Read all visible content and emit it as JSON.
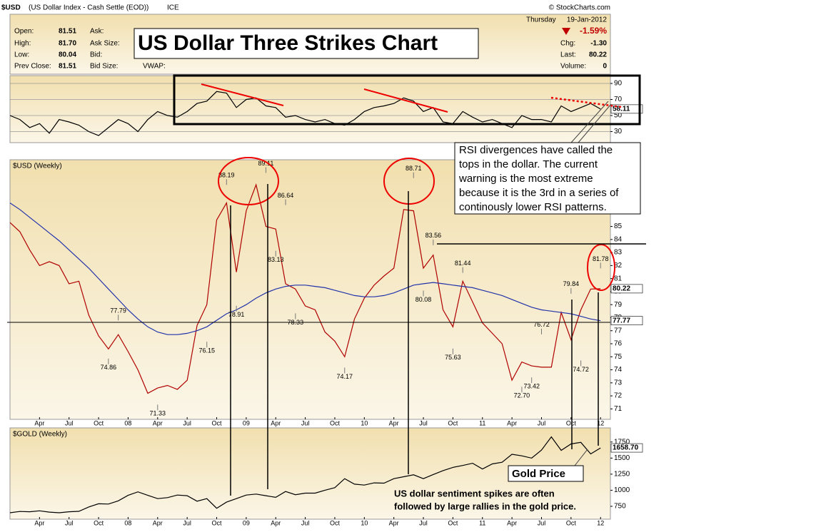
{
  "header": {
    "title": "$USD",
    "subtitle": "(US Dollar Index - Cash Settle (EOD))",
    "exchange": "ICE",
    "credit": "© StockCharts.com",
    "main_title": "US Dollar Three Strikes Chart"
  },
  "quote": {
    "left": [
      {
        "label": "Open:",
        "value": "81.51"
      },
      {
        "label": "High:",
        "value": "81.70"
      },
      {
        "label": "Low:",
        "value": "80.04"
      },
      {
        "label": "Prev Close:",
        "value": "81.51"
      }
    ],
    "middle": [
      "Ask:",
      "Ask Size:",
      "Bid:",
      "Bid Size:"
    ],
    "vwap": "VWAP:",
    "day": "Thursday",
    "date": "19-Jan-2012",
    "change_pct": "-1.59%",
    "right": [
      {
        "label": "Chg:",
        "value": "-1.30"
      },
      {
        "label": "Last:",
        "value": "80.22"
      },
      {
        "label": "Volume:",
        "value": "0"
      }
    ]
  },
  "notes": {
    "rsi": [
      "RSI divergences have called the",
      "tops in the dollar. The current",
      "warning is the most extreme",
      "because it is the 3rd in a series of",
      "continously lower RSI patterns."
    ],
    "gold_label": "Gold Price",
    "gold": [
      "US dollar sentiment spikes are often",
      "followed by large rallies in the gold price."
    ]
  },
  "chart_data": [
    {
      "type": "line",
      "xlim": [
        "2007-01",
        "2012-02"
      ],
      "ylim": [
        18,
        98
      ],
      "yticks": [
        30,
        50,
        70,
        90
      ],
      "grid": true,
      "x": [
        "2007-01",
        "2007-02",
        "2007-03",
        "2007-04",
        "2007-05",
        "2007-06",
        "2007-07",
        "2007-08",
        "2007-09",
        "2007-10",
        "2007-11",
        "2007-12",
        "2008-01",
        "2008-02",
        "2008-03",
        "2008-04",
        "2008-05",
        "2008-06",
        "2008-07",
        "2008-08",
        "2008-09",
        "2008-10",
        "2008-11",
        "2008-12",
        "2009-01",
        "2009-02",
        "2009-03",
        "2009-04",
        "2009-05",
        "2009-06",
        "2009-07",
        "2009-08",
        "2009-09",
        "2009-10",
        "2009-11",
        "2009-12",
        "2010-01",
        "2010-02",
        "2010-03",
        "2010-04",
        "2010-05",
        "2010-06",
        "2010-07",
        "2010-08",
        "2010-09",
        "2010-10",
        "2010-11",
        "2010-12",
        "2011-01",
        "2011-02",
        "2011-03",
        "2011-04",
        "2011-05",
        "2011-06",
        "2011-07",
        "2011-08",
        "2011-09",
        "2011-10",
        "2011-11",
        "2011-12",
        "2012-01"
      ],
      "series": [
        {
          "color": "#000000",
          "values": [
            50,
            45,
            35,
            40,
            28,
            45,
            42,
            38,
            30,
            25,
            35,
            45,
            40,
            30,
            45,
            55,
            50,
            48,
            55,
            65,
            68,
            80,
            78,
            60,
            70,
            72,
            62,
            60,
            48,
            50,
            45,
            42,
            45,
            40,
            38,
            45,
            55,
            60,
            62,
            65,
            72,
            68,
            55,
            60,
            42,
            40,
            55,
            48,
            42,
            45,
            40,
            35,
            50,
            45,
            45,
            42,
            62,
            55,
            60,
            65,
            58.11
          ]
        }
      ]
    },
    {
      "type": "line",
      "title": "$USD (Weekly)",
      "xlim": [
        "2007-01",
        "2012-02"
      ],
      "ylim": [
        70.2,
        89.9
      ],
      "yticks": [
        71,
        72,
        73,
        74,
        75,
        76,
        77,
        78,
        79,
        80,
        81,
        82,
        83,
        84,
        85
      ],
      "x": [
        "2007-01",
        "2007-02",
        "2007-03",
        "2007-04",
        "2007-05",
        "2007-06",
        "2007-07",
        "2007-08",
        "2007-09",
        "2007-10",
        "2007-11",
        "2007-12",
        "2008-01",
        "2008-02",
        "2008-03",
        "2008-04",
        "2008-05",
        "2008-06",
        "2008-07",
        "2008-08",
        "2008-09",
        "2008-10",
        "2008-11",
        "2008-12",
        "2009-01",
        "2009-02",
        "2009-03",
        "2009-04",
        "2009-05",
        "2009-06",
        "2009-07",
        "2009-08",
        "2009-09",
        "2009-10",
        "2009-11",
        "2009-12",
        "2010-01",
        "2010-02",
        "2010-03",
        "2010-04",
        "2010-05",
        "2010-06",
        "2010-07",
        "2010-08",
        "2010-09",
        "2010-10",
        "2010-11",
        "2010-12",
        "2011-01",
        "2011-02",
        "2011-03",
        "2011-04",
        "2011-05",
        "2011-06",
        "2011-07",
        "2011-08",
        "2011-09",
        "2011-10",
        "2011-11",
        "2011-12",
        "2012-01"
      ],
      "xticks": [
        {
          "value": "2007-04",
          "label": "Apr"
        },
        {
          "value": "2007-07",
          "label": "Jul"
        },
        {
          "value": "2007-10",
          "label": "Oct"
        },
        {
          "value": "2008-01",
          "label": "08"
        },
        {
          "value": "2008-04",
          "label": "Apr"
        },
        {
          "value": "2008-07",
          "label": "Jul"
        },
        {
          "value": "2008-10",
          "label": "Oct"
        },
        {
          "value": "2009-01",
          "label": "09"
        },
        {
          "value": "2009-04",
          "label": "Apr"
        },
        {
          "value": "2009-07",
          "label": "Jul"
        },
        {
          "value": "2009-10",
          "label": "Oct"
        },
        {
          "value": "2010-01",
          "label": "10"
        },
        {
          "value": "2010-04",
          "label": "Apr"
        },
        {
          "value": "2010-07",
          "label": "Jul"
        },
        {
          "value": "2010-10",
          "label": "Oct"
        },
        {
          "value": "2011-01",
          "label": "11"
        },
        {
          "value": "2011-04",
          "label": "Apr"
        },
        {
          "value": "2011-07",
          "label": "Jul"
        },
        {
          "value": "2011-10",
          "label": "Oct"
        },
        {
          "value": "2012-01",
          "label": "12"
        }
      ],
      "series": [
        {
          "name": "$USD (Weekly)",
          "color": "#b00000",
          "values": [
            85.3,
            84.6,
            83.2,
            82,
            82.3,
            82,
            80.6,
            80.8,
            78.2,
            76.6,
            75.6,
            76.7,
            75.4,
            74,
            72.2,
            72.6,
            72.8,
            72.5,
            73.2,
            77.4,
            79,
            85.5,
            86.8,
            81.5,
            86.2,
            88.2,
            85,
            84.8,
            80.6,
            80.2,
            78.9,
            78.6,
            76.9,
            76.2,
            75,
            77.9,
            79.5,
            80.5,
            81.2,
            81.8,
            86.3,
            86.2,
            81.8,
            82.8,
            78.6,
            77.3,
            80.8,
            79.2,
            77.6,
            76.8,
            76,
            73.2,
            74.6,
            74.3,
            74.2,
            74.2,
            78.4,
            76.3,
            78.6,
            80.2,
            80.22
          ]
        },
        {
          "color": "#2233aa",
          "values": [
            86.8,
            86.3,
            85.7,
            85.1,
            84.5,
            83.9,
            83.2,
            82.5,
            81.8,
            81,
            80.2,
            79.4,
            78.6,
            77.9,
            77.3,
            76.9,
            76.7,
            76.7,
            76.8,
            77,
            77.3,
            77.8,
            78.3,
            78.6,
            79,
            79.5,
            79.9,
            80.2,
            80.4,
            80.5,
            80.5,
            80.4,
            80.3,
            80.1,
            79.9,
            79.7,
            79.6,
            79.6,
            79.7,
            79.9,
            80.2,
            80.5,
            80.6,
            80.7,
            80.6,
            80.5,
            80.4,
            80.3,
            80.1,
            79.9,
            79.7,
            79.4,
            79.1,
            78.8,
            78.6,
            78.5,
            78.4,
            78.3,
            78.1,
            77.9,
            77.77
          ]
        }
      ],
      "annotations": [
        {
          "x": "2007-11",
          "value": 74.86
        },
        {
          "x": "2007-12",
          "value": 77.79
        },
        {
          "x": "2008-04",
          "value": 71.33
        },
        {
          "x": "2008-09",
          "value": 76.15
        },
        {
          "x": "2008-11",
          "value": 88.19
        },
        {
          "x": "2008-12",
          "value": 78.91
        },
        {
          "x": "2009-03",
          "value": 89.11
        },
        {
          "x": "2009-04",
          "value": 83.13
        },
        {
          "x": "2009-05",
          "value": 86.64
        },
        {
          "x": "2009-06",
          "value": 78.33
        },
        {
          "x": "2009-11",
          "value": 74.17
        },
        {
          "x": "2010-06",
          "value": 88.71
        },
        {
          "x": "2010-07",
          "value": 80.08
        },
        {
          "x": "2010-08",
          "value": 83.56
        },
        {
          "x": "2010-10",
          "value": 75.63
        },
        {
          "x": "2010-11",
          "value": 81.44
        },
        {
          "x": "2011-05",
          "value": 72.7,
          "label": "72.70"
        },
        {
          "x": "2011-06",
          "value": 73.42
        },
        {
          "x": "2011-07",
          "value": 76.72
        },
        {
          "x": "2011-10",
          "value": 79.84
        },
        {
          "x": "2011-11",
          "value": 74.72
        },
        {
          "x": "2012-01",
          "value": 81.78
        }
      ]
    },
    {
      "type": "line",
      "title": "$GOLD (Weekly)",
      "xlim": [
        "2007-01",
        "2012-02"
      ],
      "ylim": [
        550,
        1970
      ],
      "yticks": [
        750,
        1000,
        1250,
        1500,
        1750
      ],
      "x": [
        "2007-01",
        "2007-02",
        "2007-03",
        "2007-04",
        "2007-05",
        "2007-06",
        "2007-07",
        "2007-08",
        "2007-09",
        "2007-10",
        "2007-11",
        "2007-12",
        "2008-01",
        "2008-02",
        "2008-03",
        "2008-04",
        "2008-05",
        "2008-06",
        "2008-07",
        "2008-08",
        "2008-09",
        "2008-10",
        "2008-11",
        "2008-12",
        "2009-01",
        "2009-02",
        "2009-03",
        "2009-04",
        "2009-05",
        "2009-06",
        "2009-07",
        "2009-08",
        "2009-09",
        "2009-10",
        "2009-11",
        "2009-12",
        "2010-01",
        "2010-02",
        "2010-03",
        "2010-04",
        "2010-05",
        "2010-06",
        "2010-07",
        "2010-08",
        "2010-09",
        "2010-10",
        "2010-11",
        "2010-12",
        "2011-01",
        "2011-02",
        "2011-03",
        "2011-04",
        "2011-05",
        "2011-06",
        "2011-07",
        "2011-08",
        "2011-09",
        "2011-10",
        "2011-11",
        "2011-12",
        "2012-01"
      ],
      "xticks": [
        {
          "value": "2007-04",
          "label": "Apr"
        },
        {
          "value": "2007-07",
          "label": "Jul"
        },
        {
          "value": "2007-10",
          "label": "Oct"
        },
        {
          "value": "2008-01",
          "label": "08"
        },
        {
          "value": "2008-04",
          "label": "Apr"
        },
        {
          "value": "2008-07",
          "label": "Jul"
        },
        {
          "value": "2008-10",
          "label": "Oct"
        },
        {
          "value": "2009-01",
          "label": "09"
        },
        {
          "value": "2009-04",
          "label": "Apr"
        },
        {
          "value": "2009-07",
          "label": "Jul"
        },
        {
          "value": "2009-10",
          "label": "Oct"
        },
        {
          "value": "2010-01",
          "label": "10"
        },
        {
          "value": "2010-04",
          "label": "Apr"
        },
        {
          "value": "2010-07",
          "label": "Jul"
        },
        {
          "value": "2010-10",
          "label": "Oct"
        },
        {
          "value": "2011-01",
          "label": "11"
        },
        {
          "value": "2011-04",
          "label": "Apr"
        },
        {
          "value": "2011-07",
          "label": "Jul"
        },
        {
          "value": "2011-10",
          "label": "Oct"
        },
        {
          "value": "2012-01",
          "label": "12"
        }
      ],
      "series": [
        {
          "name": "$GOLD (Weekly)",
          "color": "#000000",
          "values": [
            650,
            670,
            665,
            680,
            660,
            650,
            665,
            672,
            740,
            790,
            785,
            835,
            920,
            975,
            920,
            870,
            885,
            925,
            915,
            830,
            870,
            720,
            815,
            870,
            925,
            940,
            915,
            890,
            980,
            930,
            955,
            955,
            1000,
            1040,
            1180,
            1095,
            1080,
            1115,
            1110,
            1180,
            1210,
            1240,
            1180,
            1245,
            1305,
            1355,
            1385,
            1420,
            1330,
            1410,
            1435,
            1560,
            1535,
            1500,
            1625,
            1830,
            1620,
            1720,
            1745,
            1565,
            1658.7
          ],
          "value_labels": [
            null,
            null,
            null,
            null,
            null,
            null,
            null,
            null,
            null,
            null,
            null,
            null,
            null,
            null,
            null,
            null,
            null,
            null,
            null,
            null,
            null,
            null,
            null,
            null,
            null,
            null,
            null,
            null,
            null,
            null,
            null,
            null,
            null,
            null,
            null,
            null,
            null,
            null,
            null,
            null,
            null,
            null,
            null,
            null,
            null,
            null,
            null,
            null,
            null,
            null,
            null,
            null,
            null,
            null,
            null,
            null,
            null,
            null,
            null,
            null,
            "1658.70"
          ]
        }
      ]
    }
  ]
}
